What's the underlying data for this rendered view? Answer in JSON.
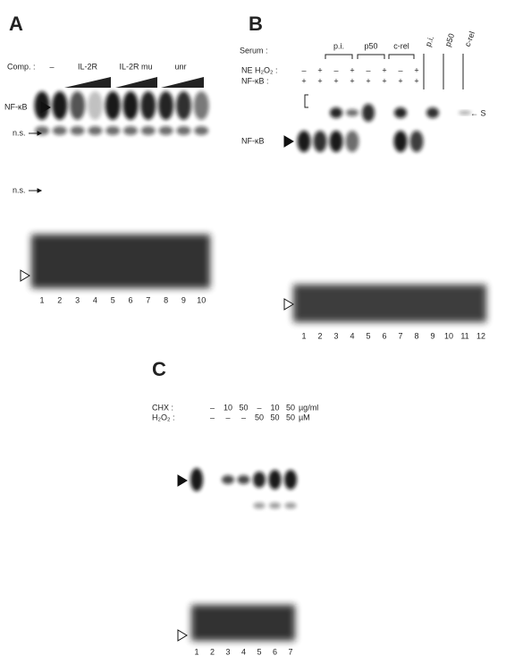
{
  "panel_a": {
    "label": "A",
    "comp_label": "Comp. :",
    "comp_groups": [
      "–",
      "IL-2R",
      "IL-2R mu",
      "unr"
    ],
    "nfkb_label": "NF-κB",
    "ns_labels": [
      "n.s.",
      "n.s."
    ],
    "lanes": [
      1,
      2,
      3,
      4,
      5,
      6,
      7,
      8,
      9,
      10
    ]
  },
  "panel_b": {
    "label": "B",
    "serum_label": "Serum :",
    "serum_groups": [
      "p.i.",
      "p50",
      "c-rel"
    ],
    "serum_alone": [
      "p.i.",
      "p50",
      "c-rel"
    ],
    "h2o2_label": "NE H₂O₂ :",
    "h2o2_row": [
      "–",
      "+",
      "–",
      "+",
      "–",
      "+",
      "–",
      "+"
    ],
    "nfkb_row_label": "NF-κB :",
    "nfkb_row": [
      "+",
      "+",
      "+",
      "+",
      "+",
      "+",
      "+",
      "+"
    ],
    "s_label": "← S",
    "nfkb_label": "NF-κB",
    "lanes": [
      1,
      2,
      3,
      4,
      5,
      6,
      7,
      8,
      9,
      10,
      11,
      12
    ]
  },
  "panel_c": {
    "label": "C",
    "chx_label": "CHX :",
    "chx_row": [
      "–",
      "10",
      "50",
      "–",
      "10",
      "50"
    ],
    "chx_unit": "µg/ml",
    "h2o2_label": "H₂O₂ :",
    "h2o2_row": [
      "–",
      "–",
      "–",
      "50",
      "50",
      "50"
    ],
    "h2o2_unit": "µM",
    "lanes": [
      1,
      2,
      3,
      4,
      5,
      6,
      7
    ]
  }
}
